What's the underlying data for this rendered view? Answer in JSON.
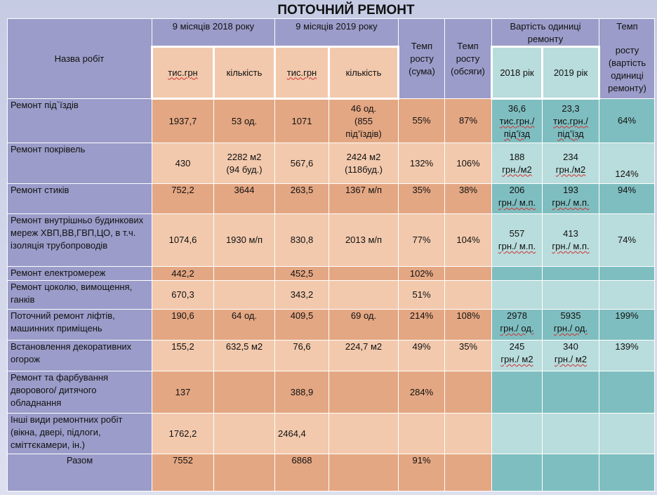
{
  "title": "ПОТОЧНИЙ РЕМОНТ",
  "header": {
    "name_col": "Назва робіт",
    "period_2018": "9 місяців 2018  року",
    "period_2019": "9 місяців 2019  року",
    "sum_unit": "тис.грн",
    "qty": "кількість",
    "growth_sum": [
      "Темп",
      "росту",
      "(сума)"
    ],
    "growth_vol": [
      "Темп",
      "росту",
      "(обсяги)"
    ],
    "unit_cost": "Вартість одиниці ремонту",
    "year_2018": "2018 рік",
    "year_2019": "2019 рік",
    "growth_cost": [
      "Темп",
      "",
      "росту",
      "(вартість",
      "одиниці",
      "ремонту)"
    ]
  },
  "rows": [
    {
      "name": "Ремонт під`їздів",
      "s2018": "1937,7",
      "q2018": "53 од.",
      "s2019": "1071",
      "q2019": [
        "46 од.",
        "(855",
        "під’їздів)"
      ],
      "gs": "55%",
      "gv": "87%",
      "c2018": [
        "36,6",
        "тис.грн./",
        "під’їзд"
      ],
      "c2019": [
        "23,3",
        "тис.грн./",
        "під’їзд"
      ],
      "gc": "64%"
    },
    {
      "name": "Ремонт покрівель",
      "s2018": "430",
      "q2018": [
        "2282 м2",
        "(94 буд.)"
      ],
      "s2019": "567,6",
      "q2019": [
        "2424 м2",
        "(118буд.)"
      ],
      "gs": "132%",
      "gv": "106%",
      "c2018": [
        "188",
        "грн./м2"
      ],
      "c2019": [
        "234",
        "грн./м2"
      ],
      "gc": "124%"
    },
    {
      "name": "Ремонт стиків",
      "s2018": "752,2",
      "q2018": "3644",
      "s2019": "263,5",
      "q2019": "1367 м/п",
      "gs": "35%",
      "gv": "38%",
      "c2018": [
        "206",
        "грн./ м.п."
      ],
      "c2019": [
        "193",
        "грн./ м.п."
      ],
      "gc": "94%"
    },
    {
      "name": "Ремонт внутрішньо будинкових мереж ХВП,ВВ,ГВП,ЦО, в т.ч. ізоляція трубопроводів",
      "s2018": "1074,6",
      "q2018": "1930 м/п",
      "s2019": "830,8",
      "q2019": "2013 м/п",
      "gs": "77%",
      "gv": "104%",
      "c2018": [
        "557",
        "грн./ м.п."
      ],
      "c2019": [
        "413",
        "грн./ м.п."
      ],
      "gc": "74%"
    },
    {
      "name": "Ремонт електромереж",
      "s2018": "442,2",
      "q2018": "",
      "s2019": "452,5",
      "q2019": "",
      "gs": "102%",
      "gv": "",
      "c2018": [],
      "c2019": [],
      "gc": ""
    },
    {
      "name": "Ремонт цоколю, вимощення, ганків",
      "s2018": "670,3",
      "q2018": "",
      "s2019": "343,2",
      "q2019": "",
      "gs": "51%",
      "gv": "",
      "c2018": [],
      "c2019": [],
      "gc": ""
    },
    {
      "name": "Поточний ремонт ліфтів, машинних приміщень",
      "s2018": "190,6",
      "q2018": "64 од.",
      "s2019": "409,5",
      "q2019": "69 од.",
      "gs": "214%",
      "gv": "108%",
      "c2018": [
        "2978",
        "грн./ од."
      ],
      "c2019": [
        "5935",
        "грн./ од."
      ],
      "gc": "199%"
    },
    {
      "name": "Встановлення декоративних огорож",
      "s2018": "155,2",
      "q2018": "632,5 м2",
      "s2019": "76,6",
      "q2019": "224,7 м2",
      "gs": "49%",
      "gv": "35%",
      "c2018": [
        "245",
        "грн./ м2"
      ],
      "c2019": [
        "340",
        "грн./ м2"
      ],
      "gc": "139%"
    },
    {
      "name": "Ремонт та фарбування дворового/ дитячого обладнання",
      "s2018": "137",
      "q2018": "",
      "s2019": "388,9",
      "q2019": "",
      "gs": "284%",
      "gv": "",
      "c2018": [],
      "c2019": [],
      "gc": ""
    },
    {
      "name": "Інші види ремонтних робіт (вікна, двері, підлоги, сміттєкамери, ін.)",
      "s2018": "1762,2",
      "q2018": "",
      "s2019": "2464,4",
      "q2019": "",
      "gs": "",
      "gv": "",
      "c2018": [],
      "c2019": [],
      "gc": ""
    },
    {
      "name": "Разом",
      "s2018": "7552",
      "q2018": "",
      "s2019": "6868",
      "q2019": "",
      "gs": "91%",
      "gv": "",
      "c2018": [],
      "c2019": [],
      "gc": ""
    }
  ]
}
